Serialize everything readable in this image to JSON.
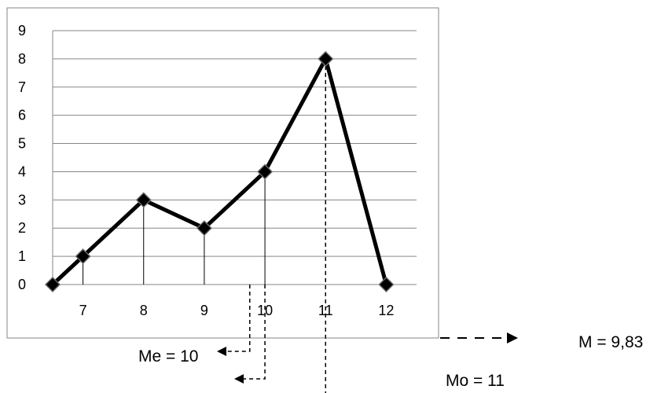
{
  "chart_data": {
    "type": "line",
    "x": [
      6.5,
      7,
      8,
      9,
      10,
      11,
      12
    ],
    "values": [
      0,
      1,
      3,
      2,
      4,
      8,
      0
    ],
    "x_tick_labels": [
      "7",
      "8",
      "9",
      "10",
      "11",
      "12"
    ],
    "x_ticks": [
      7,
      8,
      9,
      10,
      11,
      12
    ],
    "y_tick_labels": [
      "0",
      "1",
      "2",
      "3",
      "4",
      "5",
      "6",
      "7",
      "8",
      "9"
    ],
    "ylim": [
      0,
      9
    ],
    "xlim": [
      6.5,
      12.5
    ],
    "grid": true,
    "marker": "diamond",
    "vertical_drop_lines": true,
    "annotations": {
      "mean": "M = 9,83",
      "median": "Me = 10",
      "mode": "Mo = 11"
    },
    "statistics": {
      "mean_x": 9.83,
      "median_x": 10,
      "mode_x": 11
    }
  },
  "colors": {
    "line": "#000000",
    "grid": "#868686",
    "frame": "#868686",
    "marker_fill": "#000000",
    "marker_stroke": "#6a6a6a"
  }
}
